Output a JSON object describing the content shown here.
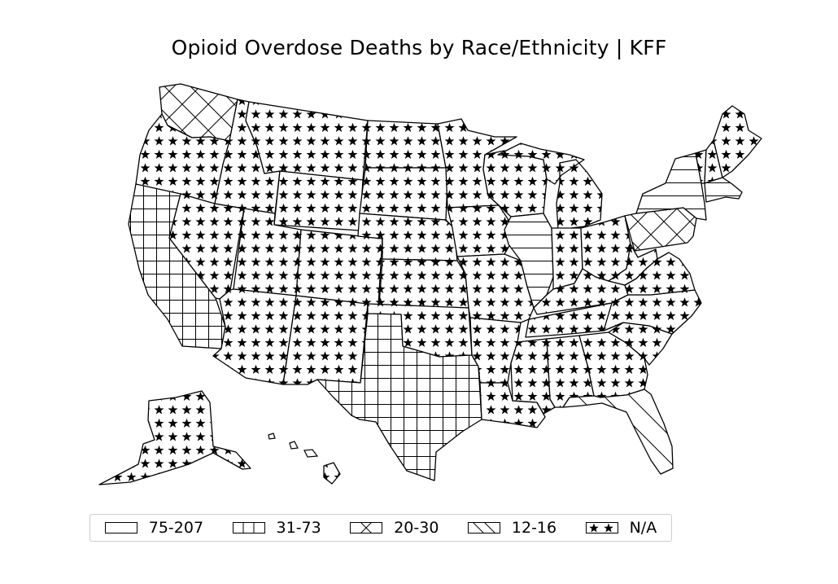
{
  "title": "Opioid Overdose Deaths by Race/Ethnicity | KFF",
  "legend": [
    {
      "label": "75-207",
      "pattern": "horizontal"
    },
    {
      "label": "31-73",
      "pattern": "grid"
    },
    {
      "label": "20-30",
      "pattern": "crosshatch"
    },
    {
      "label": "12-16",
      "pattern": "diagonal"
    },
    {
      "label": "N/A",
      "pattern": "star"
    }
  ],
  "states": {
    "New York": "75-207",
    "Illinois": "75-207",
    "Massachusetts": "75-207",
    "California": "31-73",
    "Texas": "31-73",
    "Washington": "20-30",
    "Pennsylvania": "20-30",
    "Florida": "12-16",
    "Oregon": "N/A",
    "Nevada": "N/A",
    "Idaho": "N/A",
    "Montana": "N/A",
    "Wyoming": "N/A",
    "Utah": "N/A",
    "Arizona": "N/A",
    "New Mexico": "N/A",
    "Colorado": "N/A",
    "North Dakota": "N/A",
    "South Dakota": "N/A",
    "Nebraska": "N/A",
    "Kansas": "N/A",
    "Oklahoma": "N/A",
    "Minnesota": "N/A",
    "Iowa": "N/A",
    "Missouri": "N/A",
    "Arkansas": "N/A",
    "Louisiana": "N/A",
    "Wisconsin": "N/A",
    "Michigan": "N/A",
    "Indiana": "N/A",
    "Ohio": "N/A",
    "Kentucky": "N/A",
    "Tennessee": "N/A",
    "Mississippi": "N/A",
    "Alabama": "N/A",
    "Georgia": "N/A",
    "South Carolina": "N/A",
    "North Carolina": "N/A",
    "Virginia": "N/A",
    "West Virginia": "N/A",
    "Maine": "N/A",
    "Vermont": "N/A",
    "New Hampshire": "N/A",
    "Alaska": "N/A",
    "Hawaii": "N/A"
  }
}
